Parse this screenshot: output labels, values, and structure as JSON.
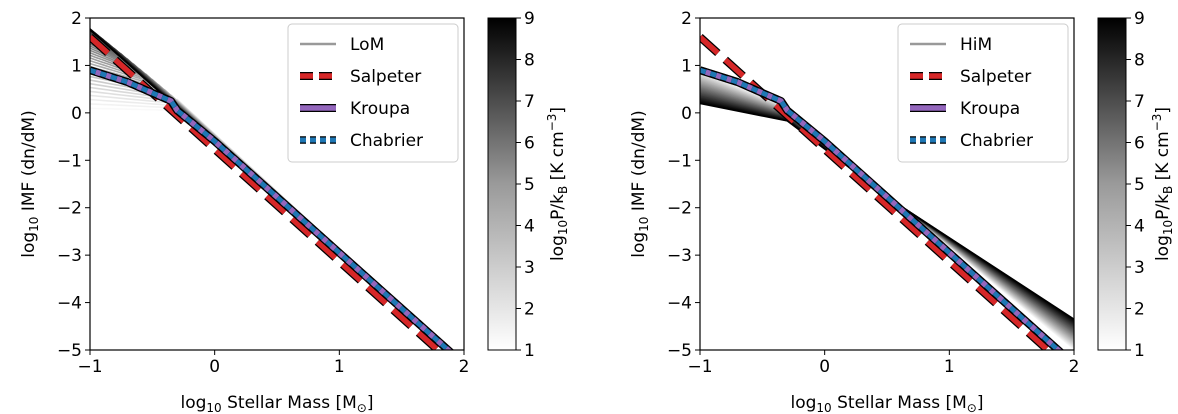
{
  "chart_data": [
    {
      "type": "line",
      "xlabel": "log10 Stellar Mass [M☉]",
      "xlabel_parts": {
        "log": "log",
        "sub": "10",
        "main": " Stellar Mass [M",
        "sym": "⊙",
        "close": "]"
      },
      "ylabel": "log10 IMF (dn/dM)",
      "ylabel_parts": {
        "log": "log",
        "sub": "10",
        "main": " IMF (dn/dM)"
      },
      "xlim": [
        -1,
        2
      ],
      "ylim": [
        -5,
        2
      ],
      "xticks": [
        -1,
        0,
        1,
        2
      ],
      "xtick_labels": [
        "−1",
        "0",
        "1",
        "2"
      ],
      "yticks": [
        -5,
        -4,
        -3,
        -2,
        -1,
        0,
        1,
        2
      ],
      "ytick_labels": [
        "−5",
        "−4",
        "−3",
        "−2",
        "−1",
        "0",
        "1",
        "2"
      ],
      "legend_position": "top-right",
      "series": [
        {
          "name": "LoM",
          "style": "solid",
          "color": "#999999",
          "description": "family of curves shaded by log10 P/kB from 1 (light) to 9 (black)",
          "x": [
            -1,
            2
          ],
          "y_low_pressure_at_x_neg1": 0.0,
          "y_high_pressure_at_x_neg1": 1.9,
          "y_at_x2": -5.3
        },
        {
          "name": "Salpeter",
          "style": "dashed",
          "color": "#d62728",
          "x": [
            -1,
            2
          ],
          "y": [
            1.6,
            -5.5
          ]
        },
        {
          "name": "Kroupa",
          "style": "solid",
          "color": "#9467bd",
          "x": [
            -1,
            -0.7,
            -0.5,
            -0.35,
            -0.3,
            0,
            1,
            2
          ],
          "y": [
            0.9,
            0.65,
            0.42,
            0.25,
            0.05,
            -0.6,
            -2.95,
            -5.3
          ]
        },
        {
          "name": "Chabrier",
          "style": "dotted",
          "color": "#1f77b4",
          "x": [
            -1,
            -0.7,
            -0.5,
            -0.35,
            -0.3,
            0,
            1,
            2
          ],
          "y": [
            0.9,
            0.65,
            0.42,
            0.25,
            0.05,
            -0.6,
            -2.95,
            -5.3
          ]
        }
      ],
      "colorbar": {
        "label": "log10P/kB [K cm−3]",
        "label_parts": {
          "log": "log",
          "sub": "10",
          "main": "P/k",
          "subB": "B",
          "unit": " [K cm",
          "sup": "−3",
          "close": "]"
        },
        "range": [
          1,
          9
        ],
        "ticks": [
          1,
          2,
          3,
          4,
          5,
          6,
          7,
          8,
          9
        ],
        "colormap": "Greys"
      }
    },
    {
      "type": "line",
      "xlabel": "log10 Stellar Mass [M☉]",
      "xlabel_parts": {
        "log": "log",
        "sub": "10",
        "main": " Stellar Mass [M",
        "sym": "⊙",
        "close": "]"
      },
      "ylabel": "log10 IMF (dn/dM)",
      "ylabel_parts": {
        "log": "log",
        "sub": "10",
        "main": " IMF (dn/dM)"
      },
      "xlim": [
        -1,
        2
      ],
      "ylim": [
        -5,
        2
      ],
      "xticks": [
        -1,
        0,
        1,
        2
      ],
      "xtick_labels": [
        "−1",
        "0",
        "1",
        "2"
      ],
      "yticks": [
        -5,
        -4,
        -3,
        -2,
        -1,
        0,
        1,
        2
      ],
      "ytick_labels": [
        "−5",
        "−4",
        "−3",
        "−2",
        "−1",
        "0",
        "1",
        "2"
      ],
      "legend_position": "top-right",
      "series": [
        {
          "name": "HiM",
          "style": "solid",
          "color": "#999999",
          "description": "family of curves shaded by log10 P/kB from 1 (light) to 9 (black)",
          "x": [
            -1,
            2
          ],
          "y_low_pressure_at_x_neg1": 0.9,
          "y_high_pressure_at_x_neg1": 0.2,
          "y_low_pressure_at_x2": -5.0,
          "y_high_pressure_at_x2": -4.35
        },
        {
          "name": "Salpeter",
          "style": "dashed",
          "color": "#d62728",
          "x": [
            -1,
            2
          ],
          "y": [
            1.6,
            -5.5
          ]
        },
        {
          "name": "Kroupa",
          "style": "solid",
          "color": "#9467bd",
          "x": [
            -1,
            -0.7,
            -0.5,
            -0.35,
            -0.3,
            0,
            1,
            2
          ],
          "y": [
            0.9,
            0.65,
            0.42,
            0.25,
            0.05,
            -0.6,
            -2.95,
            -5.3
          ]
        },
        {
          "name": "Chabrier",
          "style": "dotted",
          "color": "#1f77b4",
          "x": [
            -1,
            -0.7,
            -0.5,
            -0.35,
            -0.3,
            0,
            1,
            2
          ],
          "y": [
            0.9,
            0.65,
            0.42,
            0.25,
            0.05,
            -0.6,
            -2.95,
            -5.3
          ]
        }
      ],
      "colorbar": {
        "label": "log10P/kB [K cm−3]",
        "label_parts": {
          "log": "log",
          "sub": "10",
          "main": "P/k",
          "subB": "B",
          "unit": " [K cm",
          "sup": "−3",
          "close": "]"
        },
        "range": [
          1,
          9
        ],
        "ticks": [
          1,
          2,
          3,
          4,
          5,
          6,
          7,
          8,
          9
        ],
        "colormap": "Greys"
      }
    }
  ]
}
